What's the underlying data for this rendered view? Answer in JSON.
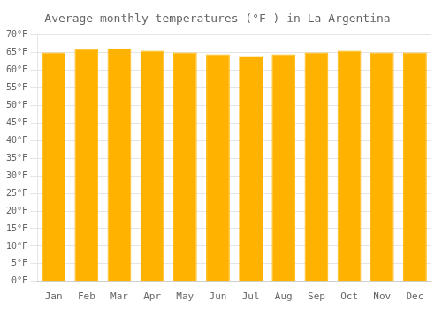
{
  "chart_data": {
    "type": "bar",
    "title": "Average monthly temperatures (°F ) in La Argentina",
    "categories": [
      "Jan",
      "Feb",
      "Mar",
      "Apr",
      "May",
      "Jun",
      "Jul",
      "Aug",
      "Sep",
      "Oct",
      "Nov",
      "Dec"
    ],
    "values": [
      65.0,
      66.0,
      66.2,
      65.5,
      65.0,
      64.5,
      64.0,
      64.5,
      65.0,
      65.5,
      65.0,
      65.0
    ],
    "color": "#FFB300",
    "ylim": [
      0,
      70
    ],
    "yticks": [
      {
        "value": 0,
        "label": "0°F"
      },
      {
        "value": 5,
        "label": "5°F"
      },
      {
        "value": 10,
        "label": "10°F"
      },
      {
        "value": 15,
        "label": "15°F"
      },
      {
        "value": 20,
        "label": "20°F"
      },
      {
        "value": 25,
        "label": "25°F"
      },
      {
        "value": 30,
        "label": "30°F"
      },
      {
        "value": 35,
        "label": "35°F"
      },
      {
        "value": 40,
        "label": "40°F"
      },
      {
        "value": 45,
        "label": "45°F"
      },
      {
        "value": 50,
        "label": "50°F"
      },
      {
        "value": 55,
        "label": "55°F"
      },
      {
        "value": 60,
        "label": "60°F"
      },
      {
        "value": 65,
        "label": "65°F"
      },
      {
        "value": 70,
        "label": "70°F"
      }
    ],
    "grid": true
  }
}
